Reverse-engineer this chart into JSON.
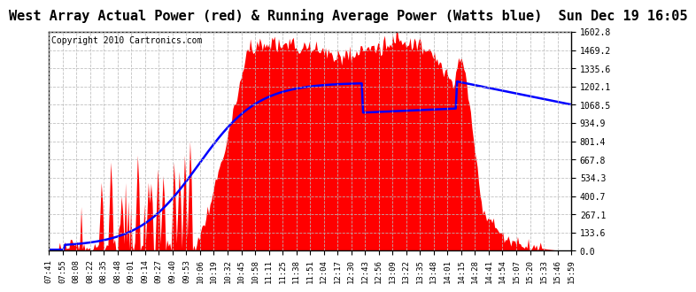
{
  "title": "West Array Actual Power (red) & Running Average Power (Watts blue)  Sun Dec 19 16:05",
  "copyright": "Copyright 2010 Cartronics.com",
  "ylabel_right_ticks": [
    0.0,
    133.6,
    267.1,
    400.7,
    534.3,
    667.8,
    801.4,
    934.9,
    1068.5,
    1202.1,
    1335.6,
    1469.2,
    1602.8
  ],
  "ymax": 1602.8,
  "ymin": 0.0,
  "fill_color": "#FF0000",
  "line_color": "#0000FF",
  "background_color": "#FFFFFF",
  "grid_color": "#BBBBBB",
  "title_fontsize": 11,
  "copyright_fontsize": 7,
  "tick_fontsize": 7,
  "x_labels": [
    "07:41",
    "07:55",
    "08:08",
    "08:22",
    "08:35",
    "08:48",
    "09:01",
    "09:14",
    "09:27",
    "09:40",
    "09:53",
    "10:06",
    "10:19",
    "10:32",
    "10:45",
    "10:58",
    "11:11",
    "11:25",
    "11:38",
    "11:51",
    "12:04",
    "12:17",
    "12:30",
    "12:43",
    "12:56",
    "13:09",
    "13:22",
    "13:35",
    "13:48",
    "14:01",
    "14:15",
    "14:28",
    "14:41",
    "14:54",
    "15:07",
    "15:20",
    "15:33",
    "15:46",
    "15:59"
  ]
}
